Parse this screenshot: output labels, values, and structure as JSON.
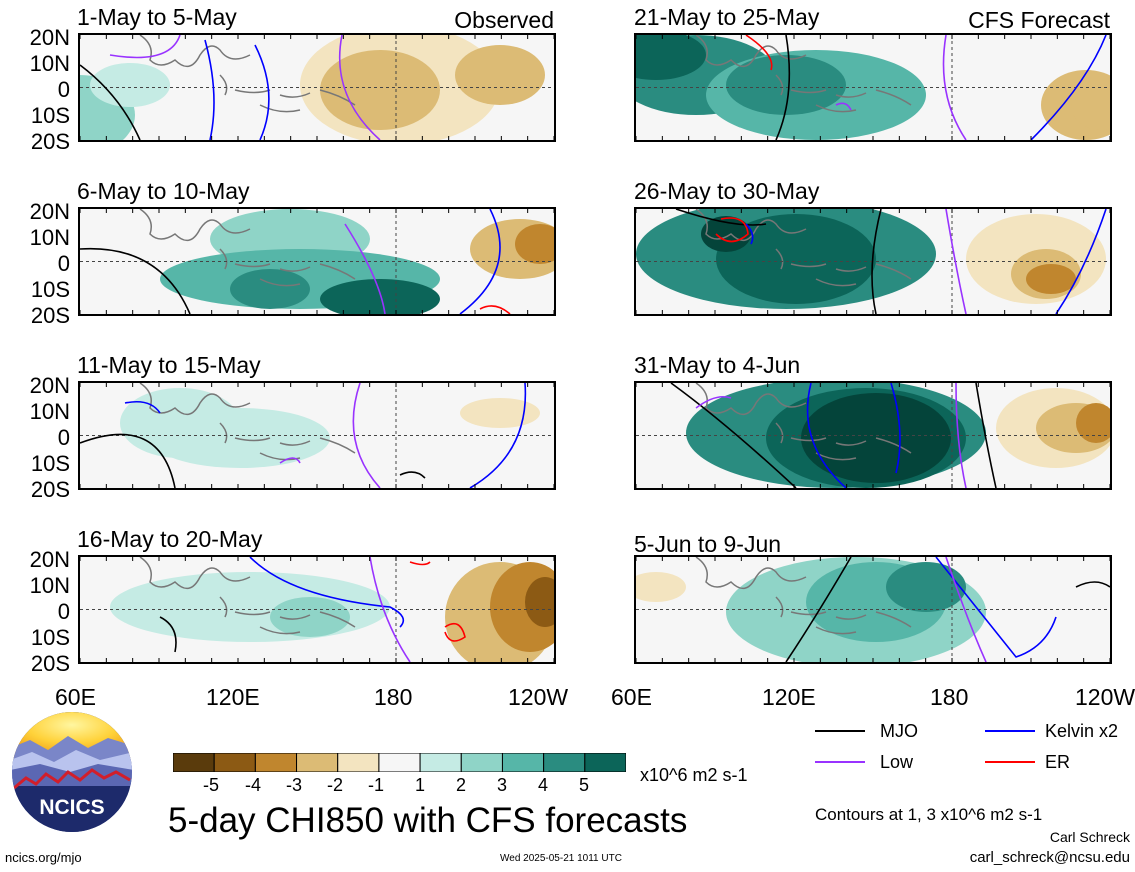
{
  "colors": {
    "brown_dark": "#5a3b0c",
    "brown": "#8c5a14",
    "brown_mid": "#c0862e",
    "tan": "#dcbb75",
    "tan_light": "#f3e4c0",
    "white": "#f6f6f6",
    "teal_pale": "#c5ebe4",
    "teal_light": "#8fd4c7",
    "teal": "#56b6a8",
    "teal_mid": "#2a8c80",
    "teal_dark": "#0c6559",
    "teal_darkest": "#04443a",
    "mjo": "#000000",
    "kelvin": "#0000ff",
    "low": "#9933ff",
    "er": "#ff0000",
    "land": "#777777"
  },
  "y_axis_labels": [
    "20N",
    "10N",
    "0",
    "10S",
    "20S"
  ],
  "x_axis_labels": [
    "60E",
    "120E",
    "180",
    "120W"
  ],
  "left_column_tag": "Observed",
  "right_column_tag": "CFS Forecast",
  "panels": [
    {
      "title": "1-May to 5-May"
    },
    {
      "title": "6-May to 10-May"
    },
    {
      "title": "11-May to 15-May"
    },
    {
      "title": "16-May to 20-May"
    },
    {
      "title": "21-May to 25-May"
    },
    {
      "title": "26-May to 30-May"
    },
    {
      "title": "31-May to 4-Jun"
    },
    {
      "title": "5-Jun to 9-Jun"
    }
  ],
  "legend": {
    "mjo": "MJO",
    "kelvin": "Kelvin x2",
    "low": "Low",
    "er": "ER"
  },
  "colorbar": {
    "ticks": [
      "-5",
      "-4",
      "-3",
      "-2",
      "-1",
      "1",
      "2",
      "3",
      "4",
      "5"
    ],
    "units": "x10^6 m2 s-1"
  },
  "logo_text": "NCICS",
  "main_title": "5-day CHI850 with CFS forecasts",
  "contours_note": "Contours at 1, 3 x10^6 m2 s-1",
  "author": "Carl Schreck",
  "email": "carl_schreck@ncsu.edu",
  "website": "ncics.org/mjo",
  "timestamp": "Wed 2025-05-21 1011 UTC"
}
